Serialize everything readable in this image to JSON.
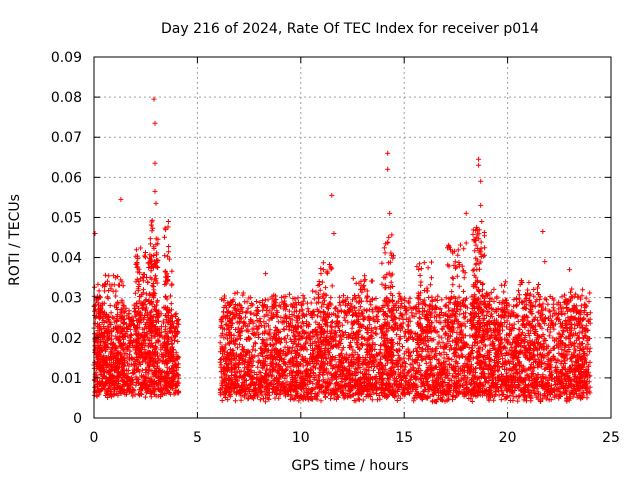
{
  "chart_data": {
    "type": "scatter",
    "title": "Day 216 of 2024, Rate Of TEC Index for receiver p014",
    "xlabel": "GPS time / hours",
    "ylabel": "ROTI / TECUs",
    "xlim": [
      0,
      25
    ],
    "ylim": [
      0,
      0.09
    ],
    "xticks": [
      0,
      5,
      10,
      15,
      20,
      25
    ],
    "xtick_labels": [
      "0",
      "5",
      "10",
      "15",
      "20",
      "25"
    ],
    "yticks": [
      0,
      0.01,
      0.02,
      0.03,
      0.04,
      0.05,
      0.06,
      0.07,
      0.08,
      0.09
    ],
    "ytick_labels": [
      "0",
      "0.01",
      "0.02",
      "0.03",
      "0.04",
      "0.05",
      "0.06",
      "0.07",
      "0.08",
      "0.09"
    ],
    "grid": true,
    "marker": "+",
    "color": "#ff0000",
    "segments": [
      {
        "x_start": 0.0,
        "x_end": 4.1,
        "typical_min": 0.005,
        "typical_max": 0.025
      },
      {
        "x_start": 6.1,
        "x_end": 24.0,
        "typical_min": 0.004,
        "typical_max": 0.028
      }
    ],
    "notable_points": [
      {
        "x": 0.05,
        "y": 0.046
      },
      {
        "x": 1.3,
        "y": 0.0545
      },
      {
        "x": 2.9,
        "y": 0.0795
      },
      {
        "x": 2.95,
        "y": 0.0735
      },
      {
        "x": 2.95,
        "y": 0.0635
      },
      {
        "x": 2.95,
        "y": 0.0565
      },
      {
        "x": 3.0,
        "y": 0.0535
      },
      {
        "x": 3.6,
        "y": 0.049
      },
      {
        "x": 8.3,
        "y": 0.036
      },
      {
        "x": 11.5,
        "y": 0.0555
      },
      {
        "x": 11.6,
        "y": 0.046
      },
      {
        "x": 14.2,
        "y": 0.066
      },
      {
        "x": 14.2,
        "y": 0.062
      },
      {
        "x": 14.3,
        "y": 0.051
      },
      {
        "x": 18.6,
        "y": 0.0645
      },
      {
        "x": 18.6,
        "y": 0.063
      },
      {
        "x": 18.7,
        "y": 0.059
      },
      {
        "x": 18.7,
        "y": 0.053
      },
      {
        "x": 18.75,
        "y": 0.049
      },
      {
        "x": 18.0,
        "y": 0.051
      },
      {
        "x": 21.7,
        "y": 0.0465
      },
      {
        "x": 21.8,
        "y": 0.039
      },
      {
        "x": 23.0,
        "y": 0.037
      }
    ],
    "clusters": [
      {
        "x_center": 0.2,
        "x_spread": 0.3,
        "y_low": 0.012,
        "y_high": 0.034,
        "count": 90
      },
      {
        "x_center": 1.0,
        "x_spread": 0.5,
        "y_low": 0.012,
        "y_high": 0.036,
        "count": 120
      },
      {
        "x_center": 2.4,
        "x_spread": 0.4,
        "y_low": 0.015,
        "y_high": 0.044,
        "count": 140
      },
      {
        "x_center": 2.9,
        "x_spread": 0.2,
        "y_low": 0.02,
        "y_high": 0.05,
        "count": 80
      },
      {
        "x_center": 3.6,
        "x_spread": 0.2,
        "y_low": 0.015,
        "y_high": 0.048,
        "count": 70
      },
      {
        "x_center": 6.5,
        "x_spread": 0.4,
        "y_low": 0.012,
        "y_high": 0.03,
        "count": 60
      },
      {
        "x_center": 11.2,
        "x_spread": 0.4,
        "y_low": 0.015,
        "y_high": 0.04,
        "count": 60
      },
      {
        "x_center": 13.0,
        "x_spread": 0.5,
        "y_low": 0.015,
        "y_high": 0.036,
        "count": 60
      },
      {
        "x_center": 14.2,
        "x_spread": 0.3,
        "y_low": 0.015,
        "y_high": 0.046,
        "count": 80
      },
      {
        "x_center": 16.0,
        "x_spread": 0.4,
        "y_low": 0.015,
        "y_high": 0.04,
        "count": 60
      },
      {
        "x_center": 17.5,
        "x_spread": 0.5,
        "y_low": 0.018,
        "y_high": 0.044,
        "count": 90
      },
      {
        "x_center": 18.6,
        "x_spread": 0.3,
        "y_low": 0.02,
        "y_high": 0.048,
        "count": 120
      },
      {
        "x_center": 19.5,
        "x_spread": 0.5,
        "y_low": 0.015,
        "y_high": 0.035,
        "count": 70
      },
      {
        "x_center": 21.0,
        "x_spread": 0.6,
        "y_low": 0.015,
        "y_high": 0.035,
        "count": 70
      },
      {
        "x_center": 23.2,
        "x_spread": 0.5,
        "y_low": 0.012,
        "y_high": 0.034,
        "count": 60
      }
    ]
  }
}
